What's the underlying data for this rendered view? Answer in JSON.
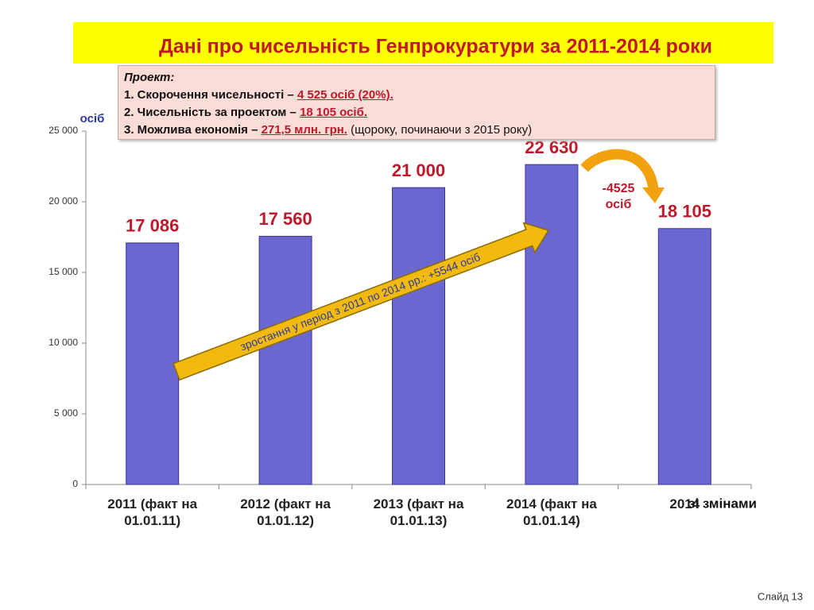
{
  "chart_data": {
    "type": "bar",
    "title": "Дані про чисельність Генпрокуратури за 2011-2014 роки",
    "y_label": "осіб",
    "categories": [
      "2011 (факт на 01.01.11)",
      "2012 (факт на 01.01.12)",
      "2013 (факт на 01.01.13)",
      "2014 (факт на 01.01.14)",
      "2014"
    ],
    "values": [
      17086,
      17560,
      21000,
      22630,
      18105
    ],
    "value_labels": [
      "17 086",
      "17 560",
      "21 000",
      "22 630",
      "18 105"
    ],
    "color": "#6a67d0",
    "ylim": [
      0,
      25000
    ],
    "yticks": [
      0,
      {
        "value": 5000,
        "label": "5 000"
      },
      {
        "value": 10000,
        "label": "10 000"
      },
      {
        "value": 15000,
        "label": "15 000"
      },
      {
        "value": 20000,
        "label": "20 000"
      },
      {
        "value": 25000,
        "label": "25 000"
      }
    ],
    "annotations": {
      "growth": "зростання у період з 2011 по 2014 рр.: +5544 осіб",
      "cut": [
        "-4525",
        "осіб"
      ],
      "last_note": "зі змінами"
    }
  },
  "project": {
    "heading": "Проект:",
    "items": [
      {
        "text": "1. Скорочення чисельності – ",
        "highlight": "4 525 осіб (20%)."
      },
      {
        "text": "2. Чисельність за проектом – ",
        "highlight": "18 105 осіб."
      },
      {
        "text": "3. Можлива економія – ",
        "highlight": "271,5 млн. грн.",
        "note": " (щороку, починаючи з 2015 року)"
      }
    ]
  },
  "footer": "Слайд  13"
}
